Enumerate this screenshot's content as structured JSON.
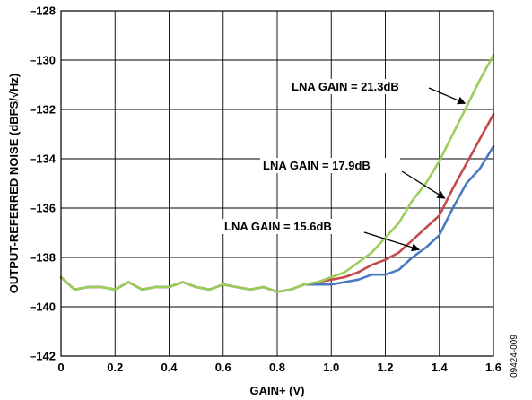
{
  "chart_data": {
    "type": "line",
    "xlabel": "GAIN+ (V)",
    "ylabel": "OUTPUT-REFERRED NOISE (dBFS/√Hz)",
    "xlim": [
      0,
      1.6
    ],
    "ylim": [
      -142,
      -128
    ],
    "x_ticks": [
      "0",
      "0.2",
      "0.4",
      "0.6",
      "0.8",
      "1.0",
      "1.2",
      "1.4",
      "1.6"
    ],
    "y_ticks": [
      "–142",
      "–140",
      "–138",
      "–136",
      "–134",
      "–132",
      "–130",
      "–128"
    ],
    "grid": true,
    "figure_id": "09424-009",
    "series": [
      {
        "name": "LNA GAIN = 15.6dB",
        "color": "#4a78c2",
        "x": [
          0,
          0.05,
          0.1,
          0.15,
          0.2,
          0.25,
          0.3,
          0.35,
          0.4,
          0.45,
          0.5,
          0.55,
          0.6,
          0.65,
          0.7,
          0.75,
          0.8,
          0.85,
          0.9,
          0.95,
          1.0,
          1.05,
          1.1,
          1.15,
          1.2,
          1.25,
          1.3,
          1.35,
          1.4,
          1.45,
          1.5,
          1.55,
          1.6
        ],
        "y": [
          -138.8,
          -139.3,
          -139.2,
          -139.2,
          -139.3,
          -139.0,
          -139.3,
          -139.2,
          -139.2,
          -139.0,
          -139.2,
          -139.3,
          -139.1,
          -139.2,
          -139.3,
          -139.2,
          -139.4,
          -139.3,
          -139.1,
          -139.1,
          -139.1,
          -139.0,
          -138.9,
          -138.7,
          -138.7,
          -138.5,
          -138.0,
          -137.6,
          -137.1,
          -136.0,
          -135.0,
          -134.4,
          -133.5
        ]
      },
      {
        "name": "LNA GAIN = 17.9dB",
        "color": "#c24a4a",
        "x": [
          0,
          0.05,
          0.1,
          0.15,
          0.2,
          0.25,
          0.3,
          0.35,
          0.4,
          0.45,
          0.5,
          0.55,
          0.6,
          0.65,
          0.7,
          0.75,
          0.8,
          0.85,
          0.9,
          0.95,
          1.0,
          1.05,
          1.1,
          1.15,
          1.2,
          1.25,
          1.3,
          1.35,
          1.4,
          1.45,
          1.5,
          1.55,
          1.6
        ],
        "y": [
          -138.8,
          -139.3,
          -139.2,
          -139.2,
          -139.3,
          -139.0,
          -139.3,
          -139.2,
          -139.2,
          -139.0,
          -139.2,
          -139.3,
          -139.1,
          -139.2,
          -139.3,
          -139.2,
          -139.4,
          -139.3,
          -139.1,
          -139.0,
          -138.9,
          -138.8,
          -138.6,
          -138.3,
          -138.1,
          -137.8,
          -137.3,
          -136.8,
          -136.3,
          -135.2,
          -134.2,
          -133.2,
          -132.2
        ]
      },
      {
        "name": "LNA GAIN = 21.3dB",
        "color": "#9acd5a",
        "x": [
          0,
          0.05,
          0.1,
          0.15,
          0.2,
          0.25,
          0.3,
          0.35,
          0.4,
          0.45,
          0.5,
          0.55,
          0.6,
          0.65,
          0.7,
          0.75,
          0.8,
          0.85,
          0.9,
          0.95,
          1.0,
          1.05,
          1.1,
          1.15,
          1.2,
          1.25,
          1.3,
          1.35,
          1.4,
          1.45,
          1.5,
          1.55,
          1.6
        ],
        "y": [
          -138.8,
          -139.3,
          -139.2,
          -139.2,
          -139.3,
          -139.0,
          -139.3,
          -139.2,
          -139.2,
          -139.0,
          -139.2,
          -139.3,
          -139.1,
          -139.2,
          -139.3,
          -139.2,
          -139.4,
          -139.3,
          -139.1,
          -139.0,
          -138.8,
          -138.6,
          -138.2,
          -137.8,
          -137.2,
          -136.6,
          -135.7,
          -135.0,
          -134.1,
          -133.0,
          -131.9,
          -130.8,
          -129.8
        ]
      }
    ],
    "annotations": [
      {
        "text": "LNA GAIN = 21.3dB",
        "series": 2,
        "at_x": 1.505
      },
      {
        "text": "LNA GAIN = 17.9dB",
        "series": 1,
        "at_x": 1.43
      },
      {
        "text": "LNA GAIN = 15.6dB",
        "series": 0,
        "at_x": 1.335
      }
    ]
  }
}
